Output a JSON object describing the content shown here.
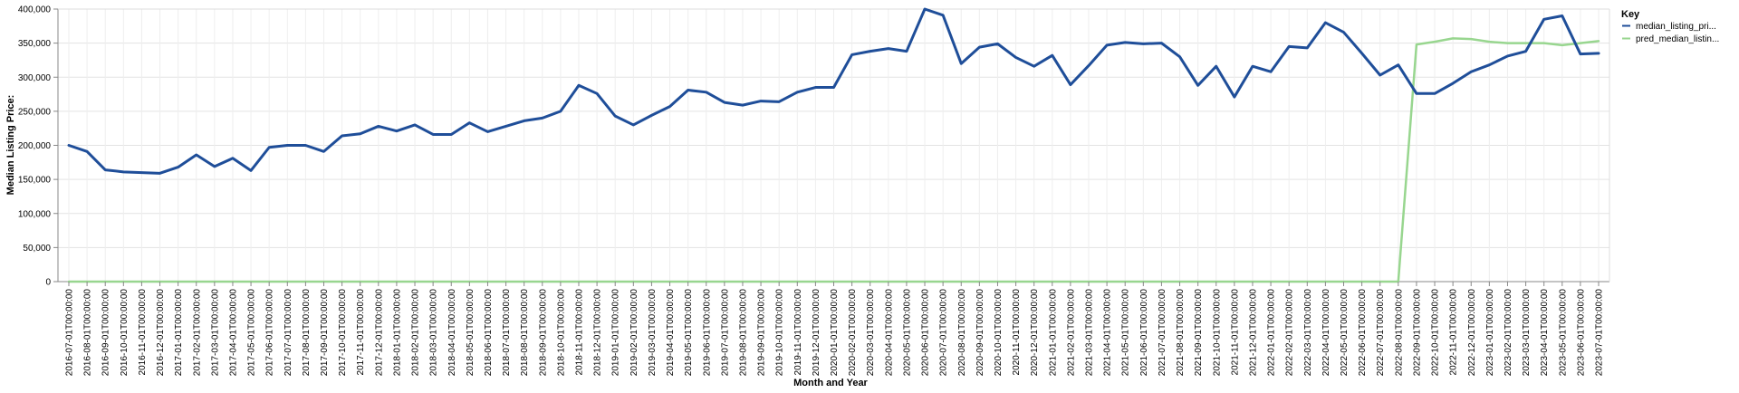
{
  "chart_data": {
    "type": "line",
    "xlabel": "Month and Year",
    "ylabel": "Median Listing Price:",
    "ylim": [
      0,
      400000
    ],
    "y_ticks": [
      0,
      50000,
      100000,
      150000,
      200000,
      250000,
      300000,
      350000,
      400000
    ],
    "grid": true,
    "legend": {
      "title": "Key",
      "placement": "top-right"
    },
    "x": [
      "2016-07-01T00:00:00",
      "2016-08-01T00:00:00",
      "2016-09-01T00:00:00",
      "2016-10-01T00:00:00",
      "2016-11-01T00:00:00",
      "2016-12-01T00:00:00",
      "2017-01-01T00:00:00",
      "2017-02-01T00:00:00",
      "2017-03-01T00:00:00",
      "2017-04-01T00:00:00",
      "2017-05-01T00:00:00",
      "2017-06-01T00:00:00",
      "2017-07-01T00:00:00",
      "2017-08-01T00:00:00",
      "2017-09-01T00:00:00",
      "2017-10-01T00:00:00",
      "2017-11-01T00:00:00",
      "2017-12-01T00:00:00",
      "2018-01-01T00:00:00",
      "2018-02-01T00:00:00",
      "2018-03-01T00:00:00",
      "2018-04-01T00:00:00",
      "2018-05-01T00:00:00",
      "2018-06-01T00:00:00",
      "2018-07-01T00:00:00",
      "2018-08-01T00:00:00",
      "2018-09-01T00:00:00",
      "2018-10-01T00:00:00",
      "2018-11-01T00:00:00",
      "2018-12-01T00:00:00",
      "2019-01-01T00:00:00",
      "2019-02-01T00:00:00",
      "2019-03-01T00:00:00",
      "2019-04-01T00:00:00",
      "2019-05-01T00:00:00",
      "2019-06-01T00:00:00",
      "2019-07-01T00:00:00",
      "2019-08-01T00:00:00",
      "2019-09-01T00:00:00",
      "2019-10-01T00:00:00",
      "2019-11-01T00:00:00",
      "2019-12-01T00:00:00",
      "2020-01-01T00:00:00",
      "2020-02-01T00:00:00",
      "2020-03-01T00:00:00",
      "2020-04-01T00:00:00",
      "2020-05-01T00:00:00",
      "2020-06-01T00:00:00",
      "2020-07-01T00:00:00",
      "2020-08-01T00:00:00",
      "2020-09-01T00:00:00",
      "2020-10-01T00:00:00",
      "2020-11-01T00:00:00",
      "2020-12-01T00:00:00",
      "2021-01-01T00:00:00",
      "2021-02-01T00:00:00",
      "2021-03-01T00:00:00",
      "2021-04-01T00:00:00",
      "2021-05-01T00:00:00",
      "2021-06-01T00:00:00",
      "2021-07-01T00:00:00",
      "2021-08-01T00:00:00",
      "2021-09-01T00:00:00",
      "2021-10-01T00:00:00",
      "2021-11-01T00:00:00",
      "2021-12-01T00:00:00",
      "2022-01-01T00:00:00",
      "2022-02-01T00:00:00",
      "2022-03-01T00:00:00",
      "2022-04-01T00:00:00",
      "2022-05-01T00:00:00",
      "2022-06-01T00:00:00",
      "2022-07-01T00:00:00",
      "2022-08-01T00:00:00",
      "2022-09-01T00:00:00",
      "2022-10-01T00:00:00",
      "2022-11-01T00:00:00",
      "2022-12-01T00:00:00",
      "2023-01-01T00:00:00",
      "2023-02-01T00:00:00",
      "2023-03-01T00:00:00",
      "2023-04-01T00:00:00",
      "2023-05-01T00:00:00",
      "2023-06-01T00:00:00",
      "2023-07-01T00:00:00"
    ],
    "x_tick_labels": [
      "2016-07-01T00:00:00",
      "2016-08-01T00:00:00",
      "2016-09-01T00:00:00",
      "2016-10-01T00:00:00",
      "2016-11-01T00:00:00",
      "2016-12-01T00:00:00",
      "2017-01-01T00:00:00",
      "2017-02-01T00:00:00",
      "2017-03-01T00:00:00",
      "2017-04-01T00:00:00",
      "2017-05-01T00:00:00",
      "2017-06-01T00:00:00",
      "2017-07-01T00:00:00",
      "2017-08-01T00:00:00",
      "2017-09-01T00:00:00",
      "2017-10-01T00:00:00",
      "2017-11-01T00:00:00",
      "2017-12-01T00:00:00",
      "2018-01-01T00:00:00",
      "2018-02-01T00:00:00",
      "2018-03-01T00:00:00",
      "2018-04-01T00:00:00",
      "2018-05-01T00:00:00",
      "2018-06-01T00:00:00",
      "2018-07-01T00:00:00",
      "2018-08-01T00:00:00",
      "2018-09-01T00:00:00",
      "2018-10-01T00:00:00",
      "2018-11-01T00:00:00",
      "2018-12-01T00:00:00",
      "2019-01-01T00:00:00",
      "2019-02-01T00:00:00",
      "2019-03-01T00:00:00",
      "2019-04-01T00:00:00",
      "2019-05-01T00:00:00",
      "2019-06-01T00:00:00",
      "2019-07-01T00:00:00",
      "2019-08-01T00:00:00",
      "2019-09-01T00:00:00",
      "2019-10-01T00:00:00",
      "2019-11-01T00:00:00",
      "2019-12-01T00:00:00",
      "2020-01-01T00:00:00",
      "2020-02-01T00:00:00",
      "2020-03-01T00:00:00",
      "2020-04-01T00:00:00",
      "2020-05-01T00:00:00",
      "2020-06-01T00:00:00",
      "2020-07-01T00:00:00",
      "2020-08-01T00:00:00",
      "2020-09-01T00:00:00",
      "2020-10-01T00:00:00",
      "2020-11-01T00:00:00",
      "2020-12-01T00:00:00",
      "2021-01-01T00:00:00",
      "2021-02-01T00:00:00",
      "2021-03-01T00:00:00",
      "2021-04-01T00:00:00",
      "2021-05-01T00:00:00",
      "2021-06-01T00:00:00",
      "2021-07-01T00:00:00",
      "2021-08-01T00:00:00",
      "2021-09-01T00:00:00",
      "2021-10-01T00:00:00",
      "2021-11-01T00:00:00",
      "2021-12-01T00:00:00",
      "2022-01-01T00:00:00",
      "2022-02-01T00:00:00",
      "2022-03-01T00:00:00",
      "2022-04-01T00:00:00",
      "2022-05-01T00:00:00",
      "2022-06-01T00:00:00",
      "2022-07-01T00:00:00",
      "2022-08-01T00:00:00",
      "2022-09-01T00:00:00",
      "2022-10-01T00:00:00",
      "2022-11-01T00:00:00",
      "2022-12-01T00:00:00",
      "2023-01-01T00:00:00",
      "2023-02-01T00:00:00",
      "2023-03-01T00:00:00",
      "2023-04-01T00:00:00",
      "2023-05-01T00:00:00",
      "2023-06-01T00:00:00",
      "2023-07-01T00:00:00"
    ],
    "series": [
      {
        "name": "median_listing_pri...",
        "color": "#1f4e99",
        "values": [
          200000,
          191000,
          164000,
          161000,
          160000,
          159000,
          168000,
          186000,
          169000,
          181000,
          163000,
          197000,
          200000,
          200000,
          191000,
          214000,
          217000,
          228000,
          221000,
          230000,
          216000,
          216000,
          233000,
          220000,
          228000,
          236000,
          240000,
          250000,
          288000,
          276000,
          243000,
          230000,
          244000,
          257000,
          281000,
          278000,
          263000,
          259000,
          265000,
          264000,
          278000,
          285000,
          285000,
          333000,
          338000,
          342000,
          338000,
          400000,
          391000,
          320000,
          344000,
          349000,
          329000,
          316000,
          332000,
          289000,
          317000,
          347000,
          351000,
          349000,
          350000,
          330000,
          288000,
          316000,
          271000,
          316000,
          308000,
          345000,
          343000,
          380000,
          366000,
          335000,
          303000,
          318000,
          276000,
          276000,
          291000,
          308000,
          318000,
          331000,
          338000,
          385000,
          390000,
          334000,
          335000
        ]
      },
      {
        "name": "pred_median_listin...",
        "color": "#98d68f",
        "values": [
          0,
          0,
          0,
          0,
          0,
          0,
          0,
          0,
          0,
          0,
          0,
          0,
          0,
          0,
          0,
          0,
          0,
          0,
          0,
          0,
          0,
          0,
          0,
          0,
          0,
          0,
          0,
          0,
          0,
          0,
          0,
          0,
          0,
          0,
          0,
          0,
          0,
          0,
          0,
          0,
          0,
          0,
          0,
          0,
          0,
          0,
          0,
          0,
          0,
          0,
          0,
          0,
          0,
          0,
          0,
          0,
          0,
          0,
          0,
          0,
          0,
          0,
          0,
          0,
          0,
          0,
          0,
          0,
          0,
          0,
          0,
          0,
          0,
          0,
          348000,
          352000,
          357000,
          356000,
          352000,
          350000,
          350000,
          350000,
          347000,
          350000,
          353000
        ]
      }
    ]
  }
}
